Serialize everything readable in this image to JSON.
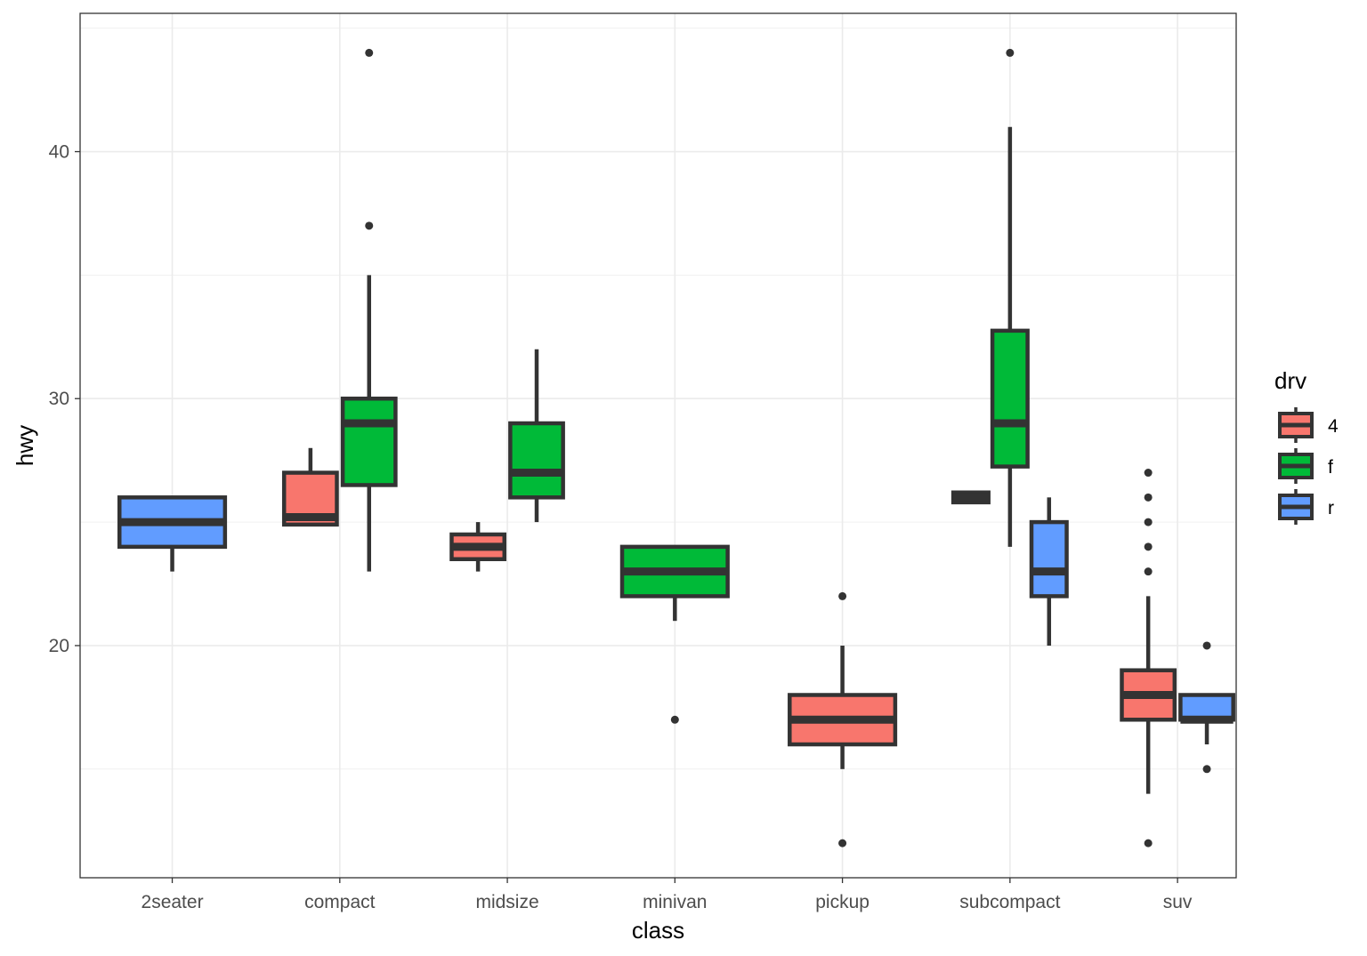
{
  "chart_data": {
    "type": "boxplot",
    "title": "",
    "xlabel": "class",
    "ylabel": "hwy",
    "categories": [
      "2seater",
      "compact",
      "midsize",
      "minivan",
      "pickup",
      "subcompact",
      "suv"
    ],
    "y_ticks": [
      20,
      30,
      40
    ],
    "ylim": [
      10.6,
      45.6
    ],
    "grid": true,
    "legend": {
      "title": "drv",
      "position": "right",
      "entries": [
        {
          "label": "4",
          "color": "#F8766D"
        },
        {
          "label": "f",
          "color": "#00BA38"
        },
        {
          "label": "r",
          "color": "#619CFF"
        }
      ]
    },
    "boxes": [
      {
        "category": "2seater",
        "drv": "r",
        "ymin": 23,
        "q1": 24,
        "median": 25,
        "q3": 26,
        "ymax": 26,
        "outliers": []
      },
      {
        "category": "compact",
        "drv": "4",
        "ymin": 25,
        "q1": 24.9,
        "median": 25.2,
        "q3": 27,
        "ymax": 28,
        "outliers": []
      },
      {
        "category": "compact",
        "drv": "f",
        "ymin": 23,
        "q1": 26.5,
        "median": 29,
        "q3": 30,
        "ymax": 35,
        "outliers": [
          37,
          44
        ]
      },
      {
        "category": "midsize",
        "drv": "4",
        "ymin": 23,
        "q1": 23.5,
        "median": 24,
        "q3": 24.5,
        "ymax": 25,
        "outliers": []
      },
      {
        "category": "midsize",
        "drv": "f",
        "ymin": 25,
        "q1": 26,
        "median": 27,
        "q3": 29,
        "ymax": 32,
        "outliers": []
      },
      {
        "category": "minivan",
        "drv": "f",
        "ymin": 21,
        "q1": 22,
        "median": 23,
        "q3": 24,
        "ymax": 24,
        "outliers": [
          17
        ]
      },
      {
        "category": "pickup",
        "drv": "4",
        "ymin": 15,
        "q1": 16,
        "median": 17,
        "q3": 18,
        "ymax": 20,
        "outliers": [
          12,
          22
        ]
      },
      {
        "category": "subcompact",
        "drv": "4",
        "ymin": 26,
        "q1": 25.8,
        "median": 26,
        "q3": 26.2,
        "ymax": 26,
        "outliers": []
      },
      {
        "category": "subcompact",
        "drv": "f",
        "ymin": 24,
        "q1": 27.25,
        "median": 29,
        "q3": 32.75,
        "ymax": 41,
        "outliers": [
          44
        ]
      },
      {
        "category": "subcompact",
        "drv": "r",
        "ymin": 20,
        "q1": 22,
        "median": 23,
        "q3": 25,
        "ymax": 26,
        "outliers": []
      },
      {
        "category": "suv",
        "drv": "4",
        "ymin": 14,
        "q1": 17,
        "median": 18,
        "q3": 19,
        "ymax": 22,
        "outliers": [
          12,
          23,
          24,
          25,
          26,
          27
        ]
      },
      {
        "category": "suv",
        "drv": "r",
        "ymin": 16,
        "q1": 17,
        "median": 17,
        "q3": 18,
        "ymax": 18,
        "outliers": [
          15,
          20
        ]
      }
    ]
  }
}
